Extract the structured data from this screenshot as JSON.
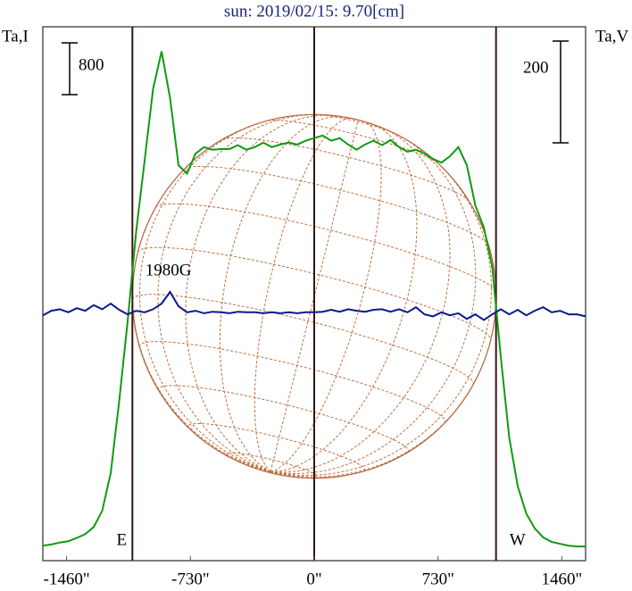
{
  "chart_data": {
    "type": "line",
    "title": "sun: 2019/02/15: 9.70[cm]",
    "ylabel": "Ta,I",
    "y2label": "Ta,V",
    "xlim": [
      -1600,
      1600
    ],
    "xticks": [
      {
        "value": -1460,
        "label": "-1460\""
      },
      {
        "value": -730,
        "label": "-730\""
      },
      {
        "value": 0,
        "label": "0\""
      },
      {
        "value": 730,
        "label": "730\""
      },
      {
        "value": 1460,
        "label": "1460\""
      }
    ],
    "ylim": [
      0,
      8250
    ],
    "y2lim": [
      -484,
      565
    ],
    "limbs": [
      {
        "x": -1072,
        "label": "E"
      },
      {
        "x": 0
      },
      {
        "x": 1072,
        "label": "W"
      }
    ],
    "scale_bars": [
      {
        "value": 800,
        "axis": "y"
      },
      {
        "value": 200,
        "axis": "y2"
      }
    ],
    "annotations": [
      {
        "text": "1980G",
        "x": -860
      }
    ],
    "x": [
      -1600,
      -1550,
      -1500,
      -1450,
      -1400,
      -1350,
      -1300,
      -1250,
      -1200,
      -1150,
      -1100,
      -1050,
      -1000,
      -950,
      -900,
      -850,
      -800,
      -750,
      -700,
      -650,
      -600,
      -550,
      -500,
      -450,
      -400,
      -350,
      -300,
      -250,
      -200,
      -150,
      -100,
      -50,
      0,
      50,
      100,
      150,
      200,
      250,
      300,
      350,
      400,
      450,
      500,
      550,
      600,
      650,
      700,
      750,
      800,
      850,
      900,
      950,
      1000,
      1050,
      1100,
      1150,
      1200,
      1250,
      1300,
      1350,
      1400,
      1450,
      1500,
      1550,
      1600
    ],
    "series": [
      {
        "color": "#109a10",
        "axis": "y",
        "values": [
          230,
          250,
          280,
          300,
          350,
          410,
          520,
          770,
          1350,
          2460,
          3700,
          5080,
          6180,
          7290,
          7870,
          7150,
          6110,
          5980,
          6290,
          6390,
          6350,
          6360,
          6360,
          6420,
          6350,
          6390,
          6460,
          6390,
          6430,
          6460,
          6430,
          6490,
          6530,
          6570,
          6490,
          6530,
          6430,
          6350,
          6430,
          6490,
          6420,
          6500,
          6390,
          6320,
          6350,
          6290,
          6210,
          6150,
          6250,
          6390,
          6110,
          5490,
          5150,
          4530,
          3150,
          1900,
          1150,
          730,
          500,
          360,
          290,
          260,
          230,
          220,
          220
        ]
      },
      {
        "color": "#0a1a8c",
        "axis": "y2",
        "values": [
          -2,
          7,
          10,
          4,
          12,
          7,
          18,
          10,
          21,
          9,
          0,
          7,
          4,
          10,
          21,
          44,
          16,
          4,
          7,
          2,
          5,
          4,
          2,
          5,
          4,
          4,
          2,
          4,
          2,
          4,
          2,
          4,
          4,
          5,
          9,
          5,
          10,
          7,
          5,
          9,
          10,
          5,
          10,
          4,
          14,
          0,
          -4,
          4,
          -2,
          2,
          -9,
          0,
          -11,
          0,
          10,
          0,
          9,
          -2,
          7,
          14,
          4,
          7,
          0,
          0,
          -4
        ]
      }
    ]
  }
}
